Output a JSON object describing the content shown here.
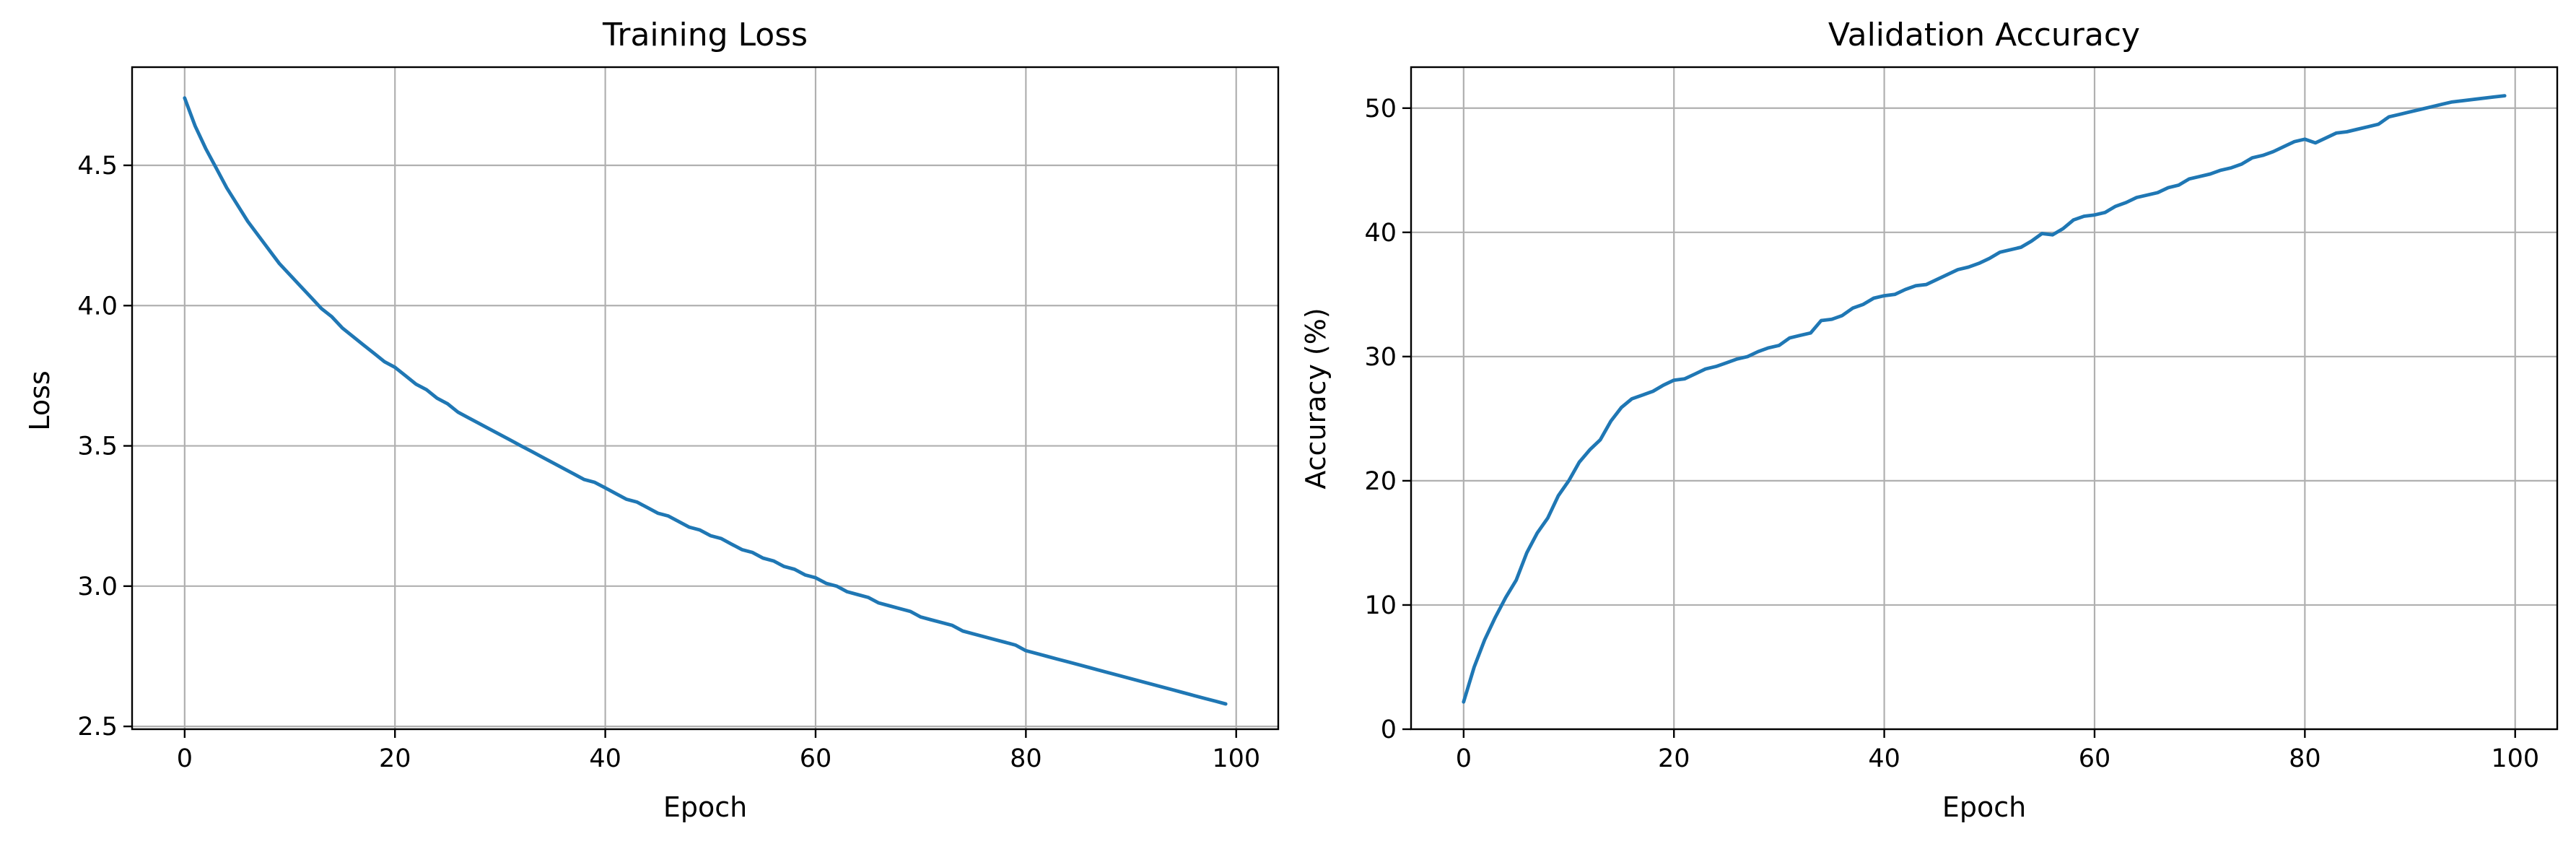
{
  "chart_data": [
    {
      "type": "line",
      "title": "Training Loss",
      "xlabel": "Epoch",
      "ylabel": "Loss",
      "xlim": [
        -5,
        104
      ],
      "ylim": [
        2.49,
        4.85
      ],
      "xticks": [
        0,
        20,
        40,
        60,
        80,
        100
      ],
      "xtick_labels": [
        "0",
        "20",
        "40",
        "60",
        "80",
        "100"
      ],
      "yticks": [
        2.5,
        3.0,
        3.5,
        4.0,
        4.5
      ],
      "ytick_labels": [
        "2.5",
        "3.0",
        "3.5",
        "4.0",
        "4.5"
      ],
      "grid": true,
      "color": "#1f77b4",
      "series": [
        {
          "x": [
            0,
            1,
            2,
            3,
            4,
            5,
            6,
            7,
            8,
            9,
            10,
            11,
            12,
            13,
            14,
            15,
            16,
            17,
            18,
            19,
            20,
            21,
            22,
            23,
            24,
            25,
            26,
            27,
            28,
            29,
            30,
            31,
            32,
            33,
            34,
            35,
            36,
            37,
            38,
            39,
            40,
            41,
            42,
            43,
            44,
            45,
            46,
            47,
            48,
            49,
            50,
            51,
            52,
            53,
            54,
            55,
            56,
            57,
            58,
            59,
            60,
            61,
            62,
            63,
            64,
            65,
            66,
            67,
            68,
            69,
            70,
            71,
            72,
            73,
            74,
            75,
            76,
            77,
            78,
            79,
            80,
            81,
            82,
            83,
            84,
            85,
            86,
            87,
            88,
            89,
            90,
            91,
            92,
            93,
            94,
            95,
            96,
            97,
            98,
            99
          ],
          "values": [
            4.74,
            4.64,
            4.56,
            4.49,
            4.42,
            4.36,
            4.3,
            4.25,
            4.2,
            4.15,
            4.11,
            4.07,
            4.03,
            3.99,
            3.96,
            3.92,
            3.89,
            3.86,
            3.83,
            3.8,
            3.78,
            3.75,
            3.72,
            3.7,
            3.67,
            3.65,
            3.62,
            3.6,
            3.58,
            3.56,
            3.54,
            3.52,
            3.5,
            3.48,
            3.46,
            3.44,
            3.42,
            3.4,
            3.38,
            3.37,
            3.35,
            3.33,
            3.31,
            3.3,
            3.28,
            3.26,
            3.25,
            3.23,
            3.21,
            3.2,
            3.18,
            3.17,
            3.15,
            3.13,
            3.12,
            3.1,
            3.09,
            3.07,
            3.06,
            3.04,
            3.03,
            3.01,
            3.0,
            2.98,
            2.97,
            2.96,
            2.94,
            2.93,
            2.92,
            2.91,
            2.89,
            2.88,
            2.87,
            2.86,
            2.84,
            2.83,
            2.82,
            2.81,
            2.8,
            2.79,
            2.77,
            2.76,
            2.75,
            2.74,
            2.73,
            2.72,
            2.71,
            2.7,
            2.69,
            2.68,
            2.67,
            2.66,
            2.65,
            2.64,
            2.63,
            2.62,
            2.61,
            2.6,
            2.59,
            2.58
          ]
        }
      ]
    },
    {
      "type": "line",
      "title": "Validation Accuracy",
      "xlabel": "Epoch",
      "ylabel": "Accuracy (%)",
      "xlim": [
        -5,
        104
      ],
      "ylim": [
        0,
        53.3
      ],
      "xticks": [
        0,
        20,
        40,
        60,
        80,
        100
      ],
      "xtick_labels": [
        "0",
        "20",
        "40",
        "60",
        "80",
        "100"
      ],
      "yticks": [
        0,
        10,
        20,
        30,
        40,
        50
      ],
      "ytick_labels": [
        "0",
        "10",
        "20",
        "30",
        "40",
        "50"
      ],
      "grid": true,
      "color": "#1f77b4",
      "series": [
        {
          "x": [
            0,
            1,
            2,
            3,
            4,
            5,
            6,
            7,
            8,
            9,
            10,
            11,
            12,
            13,
            14,
            15,
            16,
            17,
            18,
            19,
            20,
            21,
            22,
            23,
            24,
            25,
            26,
            27,
            28,
            29,
            30,
            31,
            32,
            33,
            34,
            35,
            36,
            37,
            38,
            39,
            40,
            41,
            42,
            43,
            44,
            45,
            46,
            47,
            48,
            49,
            50,
            51,
            52,
            53,
            54,
            55,
            56,
            57,
            58,
            59,
            60,
            61,
            62,
            63,
            64,
            65,
            66,
            67,
            68,
            69,
            70,
            71,
            72,
            73,
            74,
            75,
            76,
            77,
            78,
            79,
            80,
            81,
            82,
            83,
            84,
            85,
            86,
            87,
            88,
            89,
            90,
            91,
            92,
            93,
            94,
            95,
            96,
            97,
            98,
            99
          ],
          "values": [
            2.2,
            5.0,
            7.2,
            9.0,
            10.6,
            12.0,
            14.2,
            15.8,
            17.0,
            18.8,
            20.0,
            21.5,
            22.5,
            23.3,
            24.8,
            25.9,
            26.6,
            26.9,
            27.2,
            27.7,
            28.1,
            28.2,
            28.6,
            29.0,
            29.2,
            29.5,
            29.8,
            30.0,
            30.4,
            30.7,
            30.9,
            31.5,
            31.7,
            31.9,
            32.9,
            33.0,
            33.3,
            33.9,
            34.2,
            34.7,
            34.9,
            35.0,
            35.4,
            35.7,
            35.8,
            36.2,
            36.6,
            37.0,
            37.2,
            37.5,
            37.9,
            38.4,
            38.6,
            38.8,
            39.3,
            39.9,
            39.8,
            40.3,
            41.0,
            41.3,
            41.4,
            41.6,
            42.1,
            42.4,
            42.8,
            43.0,
            43.2,
            43.6,
            43.8,
            44.3,
            44.5,
            44.7,
            45.0,
            45.2,
            45.5,
            46.0,
            46.2,
            46.5,
            46.9,
            47.3,
            47.5,
            47.2,
            47.6,
            48.0,
            48.1,
            48.3,
            48.5,
            48.7,
            49.3,
            49.5,
            49.7,
            49.9,
            50.1,
            50.3,
            50.5,
            50.6,
            50.7,
            50.8,
            50.9,
            51.0
          ]
        }
      ]
    }
  ]
}
